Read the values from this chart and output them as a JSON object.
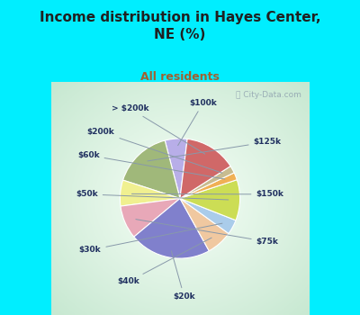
{
  "title": "Income distribution in Hayes Center,\nNE (%)",
  "subtitle": "All residents",
  "watermark": "ⓘ City-Data.com",
  "labels": [
    "$100k",
    "$125k",
    "$150k",
    "$75k",
    "$20k",
    "$40k",
    "$30k",
    "$50k",
    "$60k",
    "$200k",
    "> $200k"
  ],
  "sizes": [
    6,
    16,
    7,
    9,
    22,
    7,
    4,
    11,
    2,
    2,
    14
  ],
  "colors": [
    "#b8aee8",
    "#a0b87a",
    "#f0f090",
    "#e8a8b8",
    "#8080cc",
    "#f0c8a0",
    "#aaccea",
    "#ccdd55",
    "#f0b055",
    "#c8bc90",
    "#d06868"
  ],
  "bg_outer": "#c8e8d0",
  "bg_inner": "#f8fff8",
  "title_color": "#202020",
  "subtitle_color": "#a06030",
  "label_color": "#203060",
  "startangle": 83,
  "fig_bg": "#00eeff",
  "wedge_edge": "white",
  "wedge_lw": 0.8
}
